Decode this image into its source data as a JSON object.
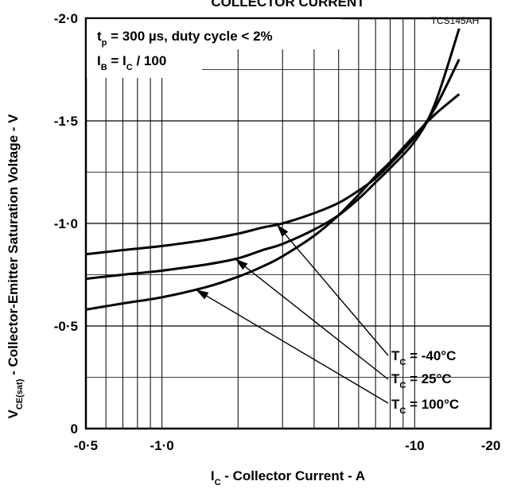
{
  "chart_data": {
    "type": "line",
    "title": "COLLECTOR CURRENT",
    "figure_code": "TCS145AH",
    "xlabel": {
      "main": "I",
      "sub": "C",
      "rest": " - Collector Current - A"
    },
    "ylabel": {
      "main": "V",
      "sub": "CE(sat)",
      "rest": " - Collector-Emitter Saturation Voltage - V"
    },
    "x_scale": "log",
    "xlim": [
      0.5,
      20
    ],
    "ylim": [
      0,
      2
    ],
    "x_ticks": [
      {
        "value": 0.5,
        "label": "-0·5"
      },
      {
        "value": 1,
        "label": "-1·0"
      },
      {
        "value": 10,
        "label": "-10"
      },
      {
        "value": 20,
        "label": "-20"
      }
    ],
    "y_ticks": [
      {
        "value": 0,
        "label": "0"
      },
      {
        "value": 0.5,
        "label": "-0·5"
      },
      {
        "value": 1,
        "label": "-1·0"
      },
      {
        "value": 1.5,
        "label": "-1·5"
      },
      {
        "value": 2,
        "label": "-2·0"
      }
    ],
    "grid": true,
    "conditions": [
      {
        "main": "t",
        "sub": "p",
        "rest": " = 300 µs, duty cycle < 2%"
      },
      {
        "main": "I",
        "sub": "B",
        "mid": " = I",
        "sub2": "C",
        "rest": " / 100"
      }
    ],
    "series": [
      {
        "name": "T_C = -40°C",
        "label": {
          "main": "T",
          "sub": "C",
          "rest": " =  -40°C"
        },
        "x": [
          0.5,
          0.7,
          1,
          1.5,
          2,
          2.5,
          3,
          4,
          5,
          6,
          7,
          8,
          10,
          12,
          15
        ],
        "y": [
          0.85,
          0.87,
          0.89,
          0.92,
          0.95,
          0.98,
          1.0,
          1.05,
          1.1,
          1.16,
          1.22,
          1.29,
          1.42,
          1.56,
          1.8
        ],
        "arrow_at_x": 2.85
      },
      {
        "name": "T_C = 25°C",
        "label": {
          "main": "T",
          "sub": "C",
          "rest": " =   25°C"
        },
        "x": [
          0.5,
          0.7,
          1,
          1.5,
          2,
          2.5,
          3,
          4,
          5,
          6,
          7,
          8,
          10,
          12,
          15
        ],
        "y": [
          0.73,
          0.75,
          0.77,
          0.8,
          0.83,
          0.87,
          0.9,
          0.97,
          1.04,
          1.12,
          1.2,
          1.27,
          1.4,
          1.58,
          1.95
        ],
        "arrow_at_x": 1.95
      },
      {
        "name": "T_C = 100°C",
        "label": {
          "main": "T",
          "sub": "C",
          "rest": " = 100°C"
        },
        "x": [
          0.5,
          0.7,
          1,
          1.5,
          2,
          2.5,
          3,
          4,
          5,
          6,
          7,
          8,
          10,
          12,
          15
        ],
        "y": [
          0.58,
          0.61,
          0.64,
          0.69,
          0.74,
          0.79,
          0.84,
          0.94,
          1.04,
          1.14,
          1.23,
          1.3,
          1.43,
          1.53,
          1.63
        ],
        "arrow_at_x": 1.36
      }
    ]
  }
}
